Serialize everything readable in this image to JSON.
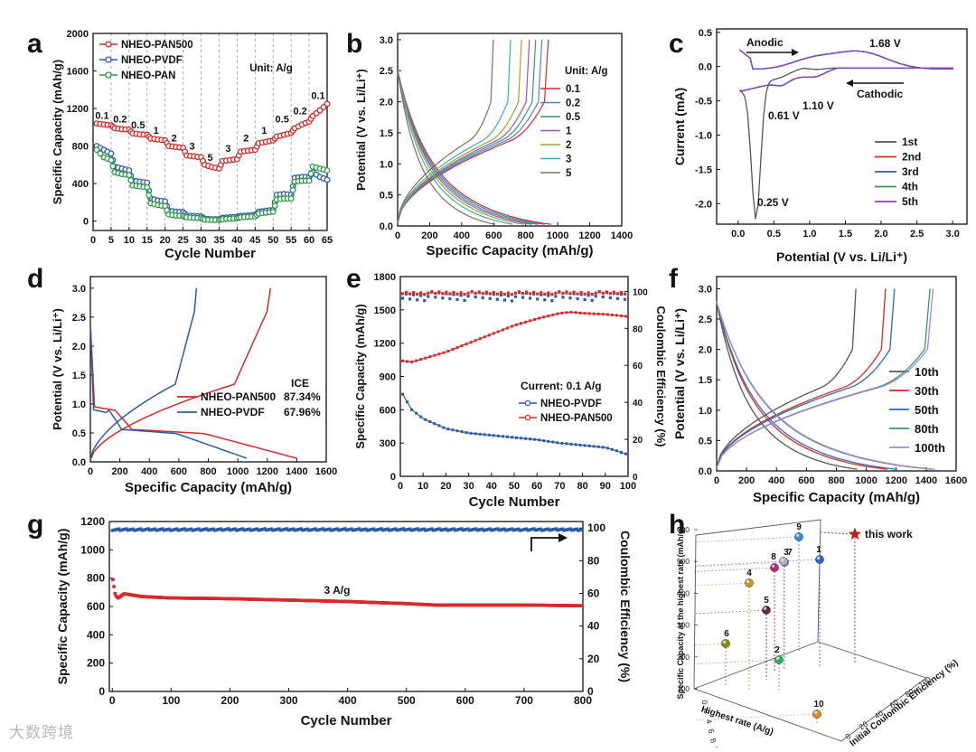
{
  "watermark": "大数跨境",
  "colors": {
    "pan500": "#d42a2a",
    "pvdf": "#2b5ba8",
    "pan": "#2f9a4a",
    "black": "#111111"
  },
  "chart_data": [
    {
      "id": "a",
      "panel": "a",
      "type": "line",
      "xlabel": "Cycle Number",
      "ylabel": "Specific Capacity (mAh/g)",
      "xlim": [
        0,
        65
      ],
      "ylim": [
        -100,
        2000
      ],
      "xticks": [
        0,
        5,
        10,
        15,
        20,
        25,
        30,
        35,
        40,
        45,
        50,
        55,
        60,
        65
      ],
      "yticks": [
        0,
        400,
        800,
        1200,
        1600,
        2000
      ],
      "legend": [
        "NHEO-PAN500",
        "NHEO-PVDF",
        "NHEO-PAN"
      ],
      "unit_note": "Unit: A/g",
      "rate_labels": [
        {
          "t": "0.1",
          "x": 2.5,
          "y": 1090
        },
        {
          "t": "0.2",
          "x": 7.5,
          "y": 1050
        },
        {
          "t": "0.5",
          "x": 12.5,
          "y": 990
        },
        {
          "t": "1",
          "x": 17.5,
          "y": 930
        },
        {
          "t": "2",
          "x": 22.5,
          "y": 850
        },
        {
          "t": "3",
          "x": 27.5,
          "y": 760
        },
        {
          "t": "5",
          "x": 32.5,
          "y": 640
        },
        {
          "t": "3",
          "x": 37.5,
          "y": 740
        },
        {
          "t": "2",
          "x": 42.5,
          "y": 850
        },
        {
          "t": "1",
          "x": 47.5,
          "y": 930
        },
        {
          "t": "0.5",
          "x": 52.5,
          "y": 1050
        },
        {
          "t": "0.2",
          "x": 57.5,
          "y": 1140
        },
        {
          "t": "0.1",
          "x": 62.5,
          "y": 1300
        }
      ],
      "series": [
        {
          "name": "NHEO-PAN500",
          "color": "#d42a2a",
          "x": [
            1,
            3,
            5,
            6,
            8,
            10,
            11,
            13,
            15,
            16,
            18,
            20,
            21,
            23,
            25,
            26,
            28,
            30,
            31,
            33,
            35,
            36,
            38,
            40,
            41,
            43,
            45,
            46,
            48,
            50,
            51,
            53,
            55,
            56,
            58,
            60,
            61,
            63,
            65
          ],
          "y": [
            1040,
            1030,
            1020,
            990,
            980,
            975,
            935,
            925,
            920,
            880,
            870,
            860,
            800,
            790,
            780,
            700,
            690,
            680,
            600,
            575,
            560,
            640,
            650,
            660,
            740,
            750,
            760,
            830,
            845,
            860,
            900,
            920,
            940,
            990,
            1030,
            1060,
            1120,
            1180,
            1250
          ]
        },
        {
          "name": "NHEO-PVDF",
          "color": "#2b5ba8",
          "x": [
            1,
            3,
            5,
            6,
            8,
            10,
            11,
            13,
            15,
            16,
            18,
            20,
            21,
            23,
            25,
            26,
            28,
            30,
            31,
            33,
            35,
            36,
            38,
            40,
            41,
            43,
            45,
            46,
            48,
            50,
            51,
            53,
            55,
            56,
            58,
            60,
            61,
            63,
            65
          ],
          "y": [
            800,
            760,
            720,
            580,
            560,
            540,
            430,
            420,
            410,
            240,
            220,
            210,
            110,
            100,
            95,
            60,
            55,
            50,
            25,
            20,
            20,
            35,
            40,
            45,
            55,
            60,
            65,
            100,
            110,
            120,
            280,
            290,
            280,
            460,
            470,
            470,
            520,
            470,
            440
          ]
        },
        {
          "name": "NHEO-PAN",
          "color": "#2f9a4a",
          "x": [
            1,
            3,
            5,
            6,
            8,
            10,
            11,
            13,
            15,
            16,
            18,
            20,
            21,
            23,
            25,
            26,
            28,
            30,
            31,
            33,
            35,
            36,
            38,
            40,
            41,
            43,
            45,
            46,
            48,
            50,
            51,
            53,
            55,
            56,
            58,
            60,
            61,
            63,
            65
          ],
          "y": [
            760,
            680,
            650,
            520,
            500,
            490,
            380,
            370,
            360,
            190,
            170,
            160,
            70,
            60,
            55,
            40,
            35,
            30,
            15,
            12,
            12,
            20,
            25,
            30,
            40,
            45,
            50,
            80,
            90,
            100,
            230,
            240,
            240,
            420,
            430,
            430,
            580,
            560,
            540
          ]
        }
      ]
    },
    {
      "id": "b",
      "panel": "b",
      "type": "line",
      "xlabel": "Specific Capacity (mAh/g)",
      "ylabel": "Potential (V vs. Li/Li+)",
      "xlim": [
        0,
        1400
      ],
      "ylim": [
        0,
        3.1
      ],
      "xticks": [
        0,
        200,
        400,
        600,
        800,
        1000,
        1200,
        1400
      ],
      "yticks": [
        0.0,
        0.5,
        1.0,
        1.5,
        2.0,
        2.5,
        3.0
      ],
      "legend_title": "Unit: A/g",
      "series": [
        {
          "name": "0.1",
          "color": "#d42a2a",
          "cap": 960
        },
        {
          "name": "0.2",
          "color": "#5a7fb8",
          "cap": 920
        },
        {
          "name": "0.5",
          "color": "#2f9a8a",
          "cap": 880
        },
        {
          "name": "1",
          "color": "#a050c0",
          "cap": 840
        },
        {
          "name": "2",
          "color": "#a8a020",
          "cap": 790
        },
        {
          "name": "3",
          "color": "#38b0b0",
          "cap": 720
        },
        {
          "name": "5",
          "color": "#8a6a5a",
          "cap": 610
        }
      ]
    },
    {
      "id": "c",
      "panel": "c",
      "type": "line",
      "xlabel": "Potential (V vs. Li/Li+)",
      "ylabel": "Current (mA)",
      "xlim": [
        -0.3,
        3.2
      ],
      "ylim": [
        -2.3,
        0.55
      ],
      "xticks": [
        0.0,
        0.5,
        1.0,
        1.5,
        2.0,
        2.5,
        3.0
      ],
      "yticks": [
        0.5,
        0.0,
        -0.5,
        -1.0,
        -1.5,
        -2.0
      ],
      "annotations": [
        "Anodic",
        "Cathodic",
        "1.68 V",
        "0.61 V",
        "1.10 V",
        "0.25 V"
      ],
      "series": [
        {
          "name": "1st",
          "color": "#555555"
        },
        {
          "name": "2nd",
          "color": "#d42a2a"
        },
        {
          "name": "3rd",
          "color": "#2b5ba8"
        },
        {
          "name": "4th",
          "color": "#2f9a4a"
        },
        {
          "name": "5th",
          "color": "#8a40c8"
        }
      ]
    },
    {
      "id": "d",
      "panel": "d",
      "type": "line",
      "xlabel": "Specific Capacity (mAh/g)",
      "ylabel": "Potential (V vs. Li/Li+)",
      "xlim": [
        0,
        1600
      ],
      "ylim": [
        0,
        3.2
      ],
      "xticks": [
        0,
        200,
        400,
        600,
        800,
        1000,
        1200,
        1400,
        1600
      ],
      "yticks": [
        0.0,
        0.5,
        1.0,
        1.5,
        2.0,
        2.5,
        3.0
      ],
      "ice_title": "ICE",
      "series": [
        {
          "name": "NHEO-PAN500",
          "color": "#d42a2a",
          "ice": "87.34%",
          "discharge_cap": 1400,
          "charge_cap": 1222
        },
        {
          "name": "NHEO-PVDF",
          "color": "#2b5ba8",
          "ice": "67.96%",
          "discharge_cap": 1060,
          "charge_cap": 720
        }
      ]
    },
    {
      "id": "e",
      "panel": "e",
      "type": "scatter",
      "xlabel": "Cycle Number",
      "ylabel": "Specific Capacity (mAh/g)",
      "y2label": "Coulombic Efficiency (%)",
      "xlim": [
        0,
        100
      ],
      "ylim": [
        0,
        1800
      ],
      "y2lim": [
        0,
        108
      ],
      "xticks": [
        0,
        10,
        20,
        30,
        40,
        50,
        60,
        70,
        80,
        90,
        100
      ],
      "yticks": [
        0,
        300,
        600,
        900,
        1200,
        1500,
        1800
      ],
      "y2ticks": [
        0,
        20,
        40,
        60,
        80,
        100
      ],
      "current_note": "Current: 0.1 A/g",
      "series": [
        {
          "name": "NHEO-PVDF",
          "color": "#2b5ba8",
          "x": [
            1,
            5,
            10,
            20,
            30,
            40,
            50,
            60,
            70,
            80,
            90,
            95,
            100
          ],
          "y": [
            740,
            600,
            520,
            430,
            390,
            370,
            350,
            330,
            300,
            280,
            260,
            230,
            195
          ]
        },
        {
          "name": "NHEO-PAN500",
          "color": "#d42a2a",
          "x": [
            1,
            5,
            10,
            20,
            30,
            40,
            50,
            60,
            70,
            75,
            80,
            90,
            100
          ],
          "y": [
            1040,
            1030,
            1060,
            1120,
            1200,
            1280,
            1360,
            1420,
            1470,
            1480,
            1470,
            1460,
            1440
          ]
        }
      ],
      "ce_series": [
        {
          "name": "PVDF CE",
          "color": "#2b5ba8",
          "value": 97
        },
        {
          "name": "PAN500 CE",
          "color": "#d42a2a",
          "value": 99
        }
      ]
    },
    {
      "id": "f",
      "panel": "f",
      "type": "line",
      "xlabel": "Specific Capacity (mAh/g)",
      "ylabel": "Potential (V vs. Li/Li+)",
      "xlim": [
        0,
        1600
      ],
      "ylim": [
        0,
        3.2
      ],
      "xticks": [
        0,
        200,
        400,
        600,
        800,
        1000,
        1200,
        1400,
        1600
      ],
      "yticks": [
        0.0,
        0.5,
        1.0,
        1.5,
        2.0,
        2.5,
        3.0
      ],
      "series": [
        {
          "name": "10th",
          "color": "#555555",
          "cap": 940
        },
        {
          "name": "30th",
          "color": "#d42a2a",
          "cap": 1140
        },
        {
          "name": "50th",
          "color": "#2b6ab8",
          "cap": 1200
        },
        {
          "name": "80th",
          "color": "#2f9a6a",
          "cap": 1440
        },
        {
          "name": "100th",
          "color": "#b080d8",
          "cap": 1460
        }
      ]
    },
    {
      "id": "g",
      "panel": "g",
      "type": "scatter",
      "xlabel": "Cycle Number",
      "ylabel": "Specific Capacity (mAh/g)",
      "y2label": "Coulombic Efficiency (%)",
      "xlim": [
        -5,
        800
      ],
      "ylim": [
        0,
        1200
      ],
      "y2lim": [
        0,
        104
      ],
      "xticks": [
        0,
        100,
        200,
        300,
        400,
        500,
        600,
        700,
        800
      ],
      "yticks": [
        0,
        200,
        400,
        600,
        800,
        1000,
        1200
      ],
      "y2ticks": [
        0,
        20,
        40,
        60,
        80,
        100
      ],
      "rate_note": "3 A/g",
      "capacity": {
        "color": "#d42a2a",
        "x": [
          1,
          5,
          10,
          20,
          50,
          100,
          200,
          300,
          400,
          500,
          550,
          600,
          700,
          800
        ],
        "y": [
          790,
          680,
          660,
          690,
          670,
          660,
          655,
          645,
          635,
          620,
          610,
          610,
          610,
          605
        ]
      },
      "ce": {
        "color": "#2b5ba8",
        "value": 99
      }
    },
    {
      "id": "h",
      "panel": "h",
      "type": "scatter",
      "xlabel": "Highest rate (A/g)",
      "ylabel": "Specific Capacity at the highest rate (mAh/g)",
      "zlabel": "Initial Coulombic Efficiency (%)",
      "yticks": [
        100,
        200,
        300,
        400,
        500,
        600
      ],
      "xticks": [
        0,
        2,
        4,
        6,
        8,
        10
      ],
      "zticks": [
        0,
        20,
        40,
        60,
        80,
        100
      ],
      "star_label": "this work",
      "points": [
        {
          "label": "1",
          "color": "#2b6ad0"
        },
        {
          "label": "2",
          "color": "#2fb060"
        },
        {
          "label": "3",
          "color": "#7a7aa0"
        },
        {
          "label": "4",
          "color": "#c89a20"
        },
        {
          "label": "5",
          "color": "#6a2a2a"
        },
        {
          "label": "6",
          "color": "#8a8a10"
        },
        {
          "label": "7",
          "color": "#c0a8c8"
        },
        {
          "label": "8",
          "color": "#c02080"
        },
        {
          "label": "9",
          "color": "#3a8ad0"
        },
        {
          "label": "10",
          "color": "#e08a20"
        }
      ]
    }
  ],
  "panel_letters": [
    "a",
    "b",
    "c",
    "d",
    "e",
    "f",
    "g",
    "h"
  ]
}
